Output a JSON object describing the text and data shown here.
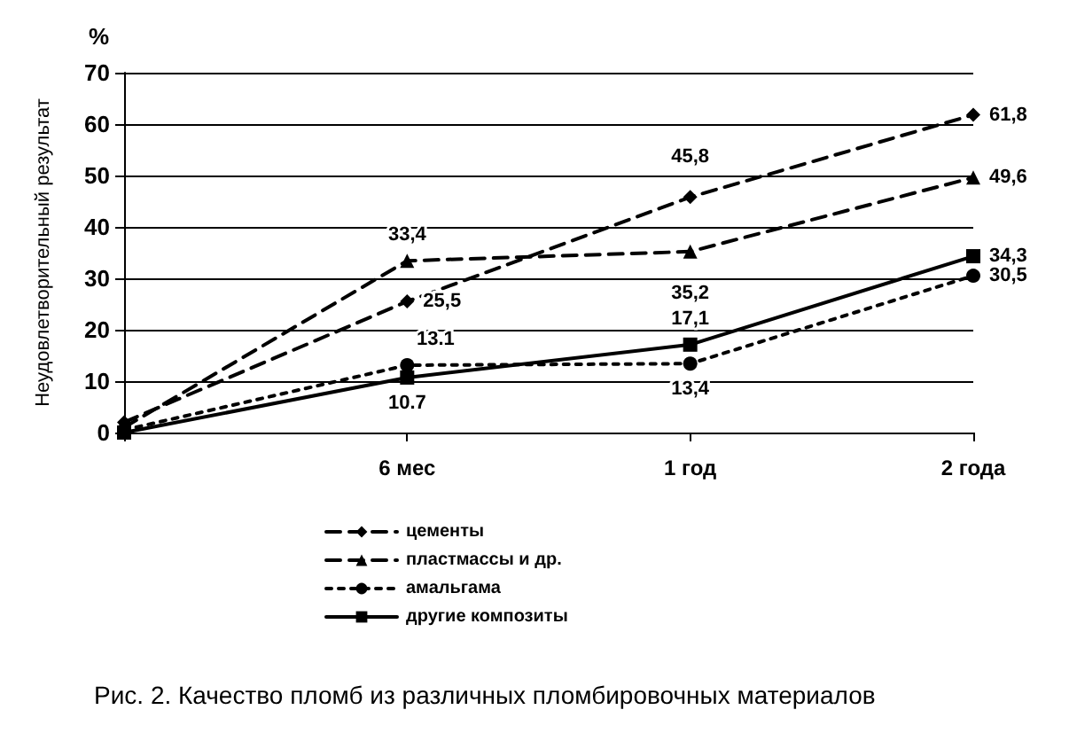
{
  "chart_data": {
    "type": "line",
    "title": "Рис. 2. Качество пломб из различных пломбировочных материалов",
    "ylabel": "Неудовлетворительный результат",
    "annotations": [
      "%"
    ],
    "categories": [
      null,
      "6 мес",
      "1 год",
      "2 года"
    ],
    "ylim": [
      0,
      70
    ],
    "yticks": [
      0,
      10,
      20,
      30,
      40,
      50,
      60,
      70
    ],
    "grid": "y",
    "legend": "bottom",
    "series": [
      {
        "name": "цементы",
        "color": "#000000",
        "marker": "diamond",
        "line_style": "dashed",
        "values": [
          2,
          25.5,
          45.8,
          61.8
        ],
        "value_labels": [
          null,
          "25,5",
          "45,8",
          "61,8"
        ]
      },
      {
        "name": "пластмассы и др.",
        "color": "#000000",
        "marker": "triangle",
        "line_style": "dashed",
        "values": [
          1,
          33.4,
          35.2,
          49.6
        ],
        "value_labels": [
          null,
          "33,4",
          "35,2",
          "49,6"
        ]
      },
      {
        "name": "амальгама",
        "color": "#000000",
        "marker": "circle",
        "line_style": "dotted",
        "values": [
          0.5,
          13.1,
          13.4,
          30.5
        ],
        "value_labels": [
          null,
          "13.1",
          "13,4",
          "30,5"
        ]
      },
      {
        "name": "другие композиты",
        "color": "#000000",
        "marker": "square",
        "line_style": "solid",
        "values": [
          0,
          10.7,
          17.1,
          34.3
        ],
        "value_labels": [
          null,
          "10.7",
          "17,1",
          "34,3"
        ]
      }
    ]
  }
}
